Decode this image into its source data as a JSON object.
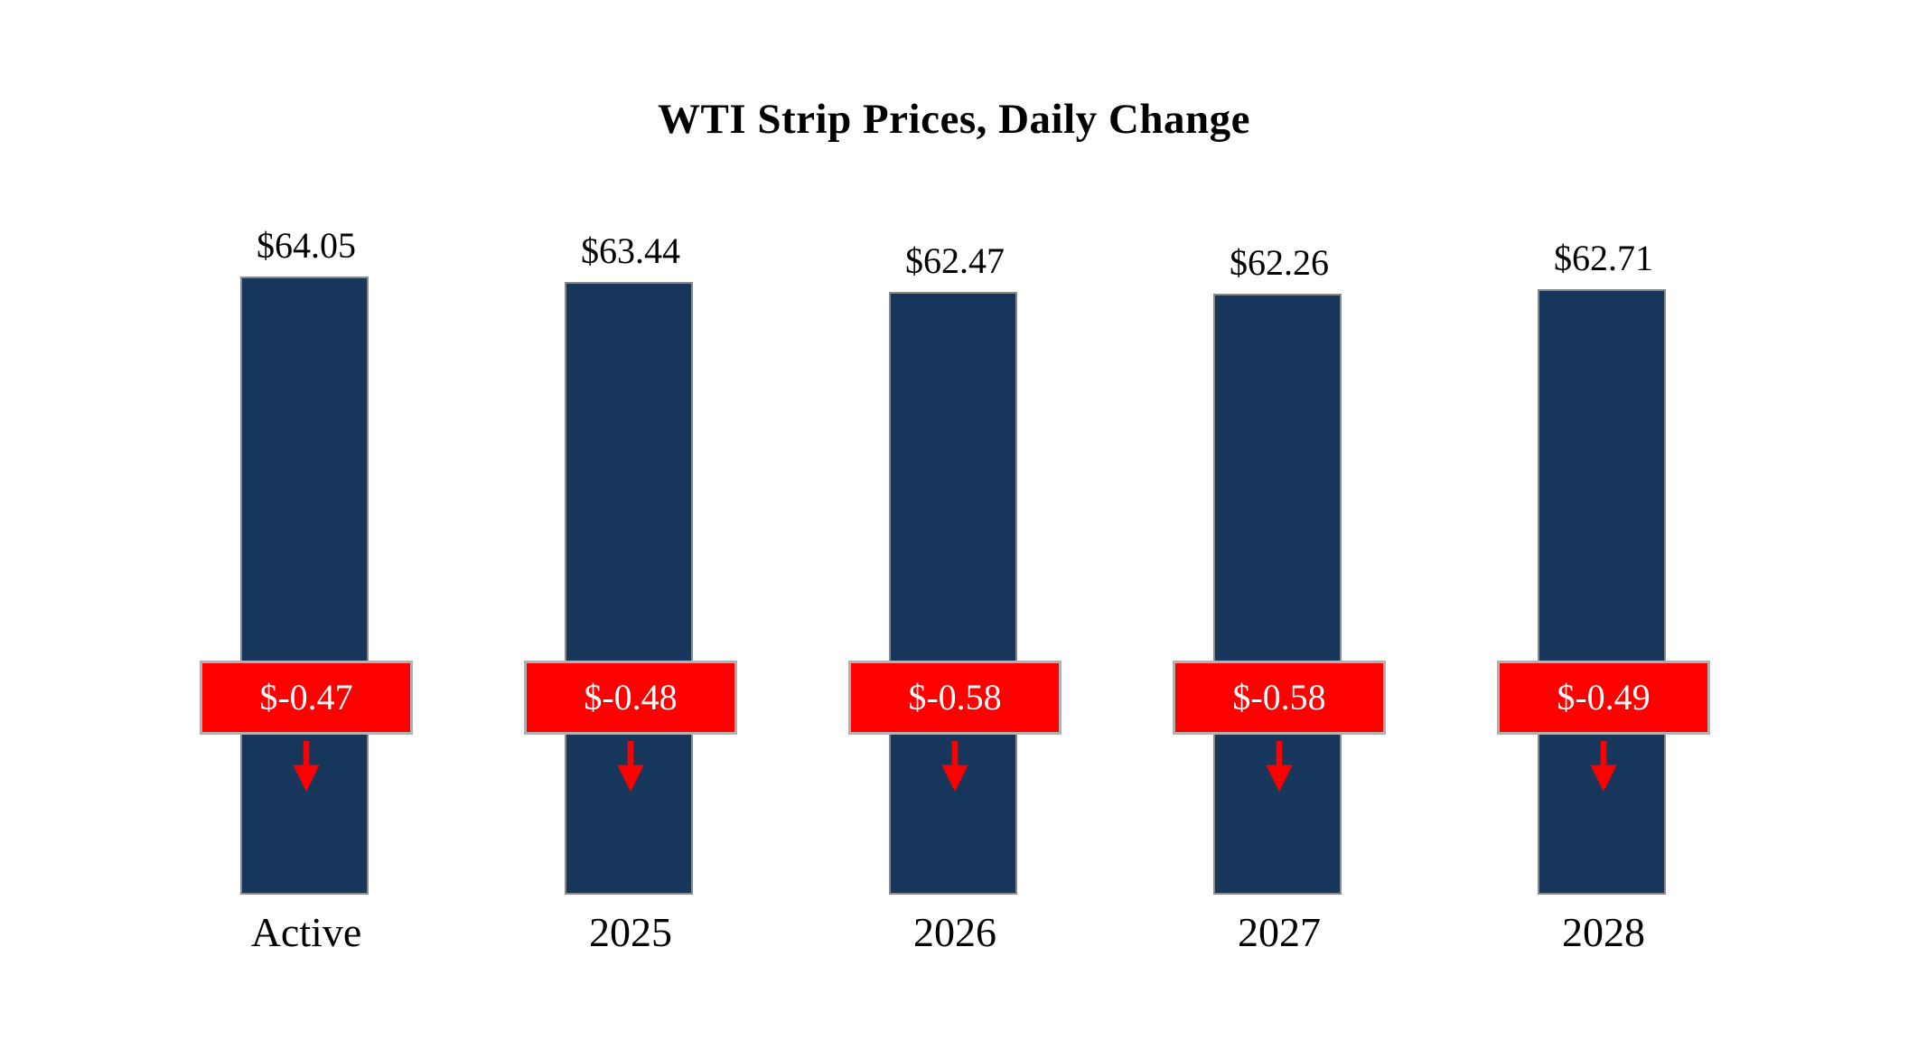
{
  "title": "WTI Strip Prices, Daily Change",
  "colors": {
    "bar": "#16365c",
    "bar_border": "#8a8a8a",
    "change_box": "#ff0000",
    "change_box_border": "#b0b0b0",
    "change_text": "#ffffff",
    "arrow": "#ff0000",
    "title_text": "#000000"
  },
  "chart_data": {
    "type": "bar",
    "title": "WTI Strip Prices, Daily Change",
    "categories": [
      "Active",
      "2025",
      "2026",
      "2027",
      "2028"
    ],
    "series": [
      {
        "name": "Strip Price",
        "values": [
          64.05,
          63.44,
          62.47,
          62.26,
          62.71
        ],
        "labels": [
          "$64.05",
          "$63.44",
          "$62.47",
          "$62.26",
          "$62.71"
        ]
      },
      {
        "name": "Daily Change",
        "values": [
          -0.47,
          -0.48,
          -0.58,
          -0.58,
          -0.49
        ],
        "labels": [
          "$-0.47",
          "$-0.48",
          "$-0.58",
          "$-0.58",
          "$-0.49"
        ]
      }
    ],
    "xlabel": "",
    "ylabel": "",
    "ylim": [
      0,
      64.05
    ],
    "grid": false,
    "legend": "none",
    "annotations": "red boxes with daily change values and red down arrows overlaid on bars"
  }
}
